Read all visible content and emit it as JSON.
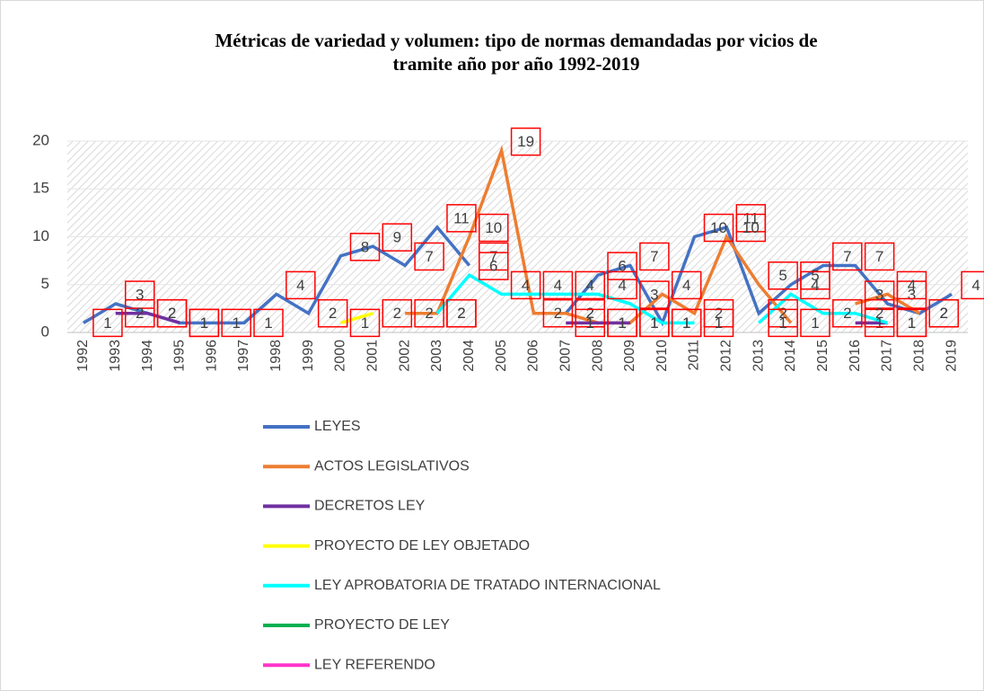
{
  "chart_data": {
    "type": "line",
    "title": "Métricas de variedad y volumen: tipo de normas demandadas por vicios de tramite año por año 1992-2019",
    "categories": [
      "1992",
      "1993",
      "1994",
      "1995",
      "1996",
      "1997",
      "1998",
      "1999",
      "2000",
      "2001",
      "2002",
      "2003",
      "2004",
      "2005",
      "2006",
      "2007",
      "2008",
      "2009",
      "2010",
      "2011",
      "2012",
      "2013",
      "2014",
      "2015",
      "2016",
      "2017",
      "2018",
      "2019"
    ],
    "series": [
      {
        "name": "LEYES",
        "color": "#4472c4",
        "values": [
          1,
          3,
          2,
          1,
          1,
          1,
          4,
          2,
          8,
          9,
          7,
          11,
          7,
          null,
          null,
          2,
          6,
          7,
          1,
          10,
          11,
          2,
          5,
          7,
          7,
          3,
          2,
          4
        ]
      },
      {
        "name": "ACTOS LEGISLATIVOS",
        "color": "#ed7d31",
        "values": [
          null,
          null,
          null,
          null,
          null,
          null,
          null,
          null,
          null,
          null,
          2,
          2,
          10,
          19,
          2,
          2,
          1,
          1,
          4,
          2,
          10,
          5,
          1,
          null,
          3,
          4,
          2,
          null
        ]
      },
      {
        "name": "DECRETOS LEY",
        "color": "#7030a0",
        "values": [
          null,
          2,
          2,
          1,
          null,
          null,
          null,
          null,
          null,
          null,
          null,
          null,
          null,
          null,
          null,
          1,
          1,
          1,
          null,
          null,
          null,
          null,
          null,
          null,
          1,
          1,
          null,
          null
        ]
      },
      {
        "name": "PROYECTO DE LEY OBJETADO",
        "color": "#ffff00",
        "values": [
          null,
          null,
          null,
          null,
          null,
          null,
          null,
          null,
          1,
          2,
          null,
          null,
          null,
          null,
          null,
          null,
          null,
          null,
          null,
          null,
          null,
          null,
          null,
          null,
          null,
          null,
          null,
          null
        ]
      },
      {
        "name": "LEY APROBATORIA DE TRATADO INTERNACIONAL",
        "color": "#00ffff",
        "values": [
          null,
          null,
          null,
          null,
          null,
          null,
          null,
          null,
          null,
          null,
          null,
          2,
          6,
          4,
          4,
          4,
          4,
          3,
          1,
          1,
          null,
          1,
          4,
          2,
          2,
          1,
          null,
          null
        ]
      },
      {
        "name": "PROYECTO DE LEY",
        "color": "#00b050",
        "values": [
          null,
          null,
          null,
          null,
          null,
          null,
          null,
          null,
          null,
          null,
          null,
          null,
          null,
          null,
          null,
          null,
          null,
          null,
          null,
          null,
          null,
          null,
          null,
          null,
          null,
          null,
          null,
          null
        ]
      },
      {
        "name": "LEY REFERENDO",
        "color": "#ff33cc",
        "values": [
          null,
          null,
          null,
          null,
          null,
          null,
          null,
          null,
          null,
          null,
          null,
          null,
          null,
          null,
          null,
          null,
          null,
          null,
          null,
          null,
          null,
          null,
          null,
          null,
          null,
          null,
          null,
          null
        ]
      }
    ],
    "ylim": [
      0,
      20
    ],
    "yticks": [
      0,
      5,
      10,
      15,
      20
    ],
    "grid": true
  }
}
